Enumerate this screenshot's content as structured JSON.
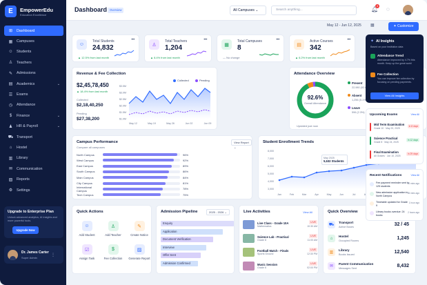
{
  "brand": {
    "name": "EmpowerEdu",
    "sub": "Education Excellence",
    "logo": "E"
  },
  "nav": [
    {
      "label": "Dashboard",
      "icon": "⊞",
      "chev": ""
    },
    {
      "label": "Campuses",
      "icon": "▦",
      "chev": ""
    },
    {
      "label": "Students",
      "icon": "☺",
      "chev": ""
    },
    {
      "label": "Teachers",
      "icon": "♙",
      "chev": ""
    },
    {
      "label": "Admissions",
      "icon": "✎",
      "chev": ""
    },
    {
      "label": "Academics",
      "icon": "▤",
      "chev": "⌄"
    },
    {
      "label": "Exams",
      "icon": "☰",
      "chev": ""
    },
    {
      "label": "Attendance",
      "icon": "◷",
      "chev": ""
    },
    {
      "label": "Finance",
      "icon": "$",
      "chev": "⌄"
    },
    {
      "label": "HR & Payroll",
      "icon": "♟",
      "chev": "⌄"
    },
    {
      "label": "Transport",
      "icon": "⛟",
      "chev": ""
    },
    {
      "label": "Hostel",
      "icon": "⌂",
      "chev": ""
    },
    {
      "label": "Library",
      "icon": "▥",
      "chev": ""
    },
    {
      "label": "Communication",
      "icon": "✉",
      "chev": ""
    },
    {
      "label": "Reports",
      "icon": "▨",
      "chev": ""
    },
    {
      "label": "Settings",
      "icon": "⚙",
      "chev": ""
    }
  ],
  "upgrade": {
    "title": "Upgrade to Enterprise Plan",
    "text": "Unlock advanced analytics, AI insights and more powerful tools.",
    "button": "Upgrade Now"
  },
  "user": {
    "name": "Dr. James Carter",
    "role": "Super Admin"
  },
  "top": {
    "title": "Dashboard",
    "badge": "Overview",
    "campus": "All Campuses ⌄",
    "search": "Search anything...",
    "notif_count": "3",
    "date": "May 12 - Jun 12, 2025",
    "customize": "✦ Customize"
  },
  "stats": [
    {
      "label": "Total Students",
      "value": "24,832",
      "change": "▲ 12.5% from last month",
      "icon": "☺",
      "bg": "#e6edff",
      "fg": "#2f6bff",
      "spark": "#2f6bff"
    },
    {
      "label": "Total Teachers",
      "value": "1,204",
      "change": "▲ 8.4% from last month",
      "icon": "♙",
      "bg": "#f0e6ff",
      "fg": "#8a4dff",
      "spark": "#8a4dff"
    },
    {
      "label": "Total Campuses",
      "value": "8",
      "change": "— No change",
      "icon": "▦",
      "bg": "#e2f6ec",
      "fg": "#1aa35a",
      "spark": "#1aa35a"
    },
    {
      "label": "Active Courses",
      "value": "342",
      "change": "▲ 6.2% from last month",
      "icon": "▤",
      "bg": "#fff1e0",
      "fg": "#f08a1a",
      "spark": "#f08a1a"
    }
  ],
  "revenue": {
    "title": "Revenue & Fee Collection",
    "total": "$2,45,78,450",
    "change": "▲ 18.4% from last month",
    "collected_label": "Collected",
    "collected": "$2,18,40,250",
    "pending_label": "Pending",
    "pending": "$27,38,200",
    "legend_collected": "Collected",
    "legend_pending": "Pending",
    "ticks_y": [
      "$3.5M",
      "$3.0M",
      "$2.5M",
      "$2.0M",
      "$1.5M",
      "$1.0M"
    ],
    "ticks_x": [
      "May 12",
      "May 19",
      "May 26",
      "Jun 02",
      "Jun 09"
    ]
  },
  "attendance": {
    "title": "Attendance Overview",
    "pct": "92.6%",
    "label": "Overall Attendance",
    "updated": "Updated just now",
    "items": [
      {
        "name": "Present",
        "val": "22,980 (92.6%)",
        "color": "#1aa35a"
      },
      {
        "name": "Absent",
        "val": "1,256 (5.1%)",
        "color": "#f08a1a"
      },
      {
        "name": "Leave",
        "val": "596 (2.3%)",
        "color": "#8a4dff"
      }
    ]
  },
  "campus": {
    "title": "Campus Performance",
    "sub": "Compare all campuses",
    "btn": "View Report ⌄",
    "rows": [
      {
        "name": "North Campus",
        "pct": "96%"
      },
      {
        "name": "West Campus",
        "pct": "92%"
      },
      {
        "name": "East Campus",
        "pct": "89%"
      },
      {
        "name": "South Campus",
        "pct": "86%"
      },
      {
        "name": "Main Campus",
        "pct": "84%"
      },
      {
        "name": "City Campus",
        "pct": "81%"
      },
      {
        "name": "International Campus",
        "pct": "78%"
      },
      {
        "name": "Tech Campus",
        "pct": "75%"
      }
    ]
  },
  "enroll": {
    "title": "Student Enrollment Trends",
    "btn": "This Year ⌄",
    "tip_month": "May 2025",
    "tip_val": "5,632 Students",
    "ticks_x": [
      "Jan",
      "Feb",
      "Mar",
      "Apr",
      "May",
      "Jun",
      "Jul",
      "Aug",
      "Sep",
      "Oct",
      "Nov",
      "Dec"
    ],
    "ticks_y": [
      "8,000",
      "7,000",
      "6,000",
      "5,000",
      "4,000",
      "3,000"
    ]
  },
  "quick": {
    "title": "Quick Actions",
    "items": [
      {
        "label": "Add Student",
        "icon": "☺",
        "bg": "#e6edff",
        "fg": "#2f6bff"
      },
      {
        "label": "Add Teacher",
        "icon": "♙",
        "bg": "#e2f6ec",
        "fg": "#1aa35a"
      },
      {
        "label": "Create Notice",
        "icon": "✎",
        "bg": "#fff1e0",
        "fg": "#f08a1a"
      },
      {
        "label": "Assign Task",
        "icon": "☑",
        "bg": "#f0e6ff",
        "fg": "#8a4dff"
      },
      {
        "label": "Fee Collection",
        "icon": "$",
        "bg": "#e2f6ec",
        "fg": "#1aa35a"
      },
      {
        "label": "Generate Report",
        "icon": "▨",
        "bg": "#e6edff",
        "fg": "#2f6bff"
      }
    ]
  },
  "pipeline": {
    "title": "Admission Pipeline",
    "btn": "2025 - 2026 ⌄",
    "rows": [
      {
        "name": "Enquiry",
        "val": "1,245",
        "color": "#dcdcfb"
      },
      {
        "name": "Application",
        "val": "845",
        "color": "#cfe0fb"
      },
      {
        "name": "Document Verification",
        "val": "512",
        "color": "#d8d1fa"
      },
      {
        "name": "Interview",
        "val": "376",
        "color": "#cfe0fb"
      },
      {
        "name": "Offer Sent",
        "val": "289",
        "color": "#d8d1fa"
      },
      {
        "name": "Admission Confirmed",
        "val": "256",
        "color": "#cfe0fb"
      }
    ]
  },
  "live": {
    "title": "Live Activities",
    "view": "View All",
    "rows": [
      {
        "t": "Live Class - Grade 10A",
        "s": "Mathematics",
        "time": "10:30 AM"
      },
      {
        "t": "Science Lab - Practical",
        "s": "Grade 8",
        "time": "11:00 AM"
      },
      {
        "t": "Football Match - Finals",
        "s": "Sports Ground",
        "time": "12:30 PM"
      },
      {
        "t": "Music Session",
        "s": "Grade 6",
        "time": "02:00 PM"
      }
    ],
    "badge": "LIVE"
  },
  "overview": {
    "title": "Quick Overview",
    "rows": [
      {
        "t": "Transport",
        "s": "Active Buses",
        "v": "32 / 45",
        "icon": "⛟",
        "bg": "#e6edff",
        "fg": "#2f6bff"
      },
      {
        "t": "Hostel",
        "s": "Occupied Rooms",
        "v": "1,245",
        "icon": "⌂",
        "bg": "#e2f6ec",
        "fg": "#1aa35a"
      },
      {
        "t": "Library",
        "s": "Books Issued",
        "v": "12,540",
        "icon": "▥",
        "bg": "#fff1e0",
        "fg": "#f08a1a"
      },
      {
        "t": "Parent Communication",
        "s": "Messages Sent",
        "v": "8,432",
        "icon": "✉",
        "bg": "#f0e6ff",
        "fg": "#8a4dff"
      }
    ]
  },
  "ai": {
    "title": "AI Insights",
    "sub": "Based on your institution data",
    "items": [
      {
        "t": "Attendance Trend",
        "d": "Attendance improved by 4.7% this month. Keep up the great work!",
        "color": "#1aa35a"
      },
      {
        "t": "Fee Collection",
        "d": "You can improve fee collection by focusing on pending payments.",
        "color": "#f08a1a"
      }
    ],
    "btn": "View All Insights"
  },
  "exams": {
    "title": "Upcoming Exams",
    "view": "View All",
    "rows": [
      {
        "t": "Mid Term Examination",
        "s": "Grade 10 · May 20, 2025",
        "b": "In 8 days",
        "color": "#ef3b3b",
        "bbg": "#ffe5e5"
      },
      {
        "t": "Science Practical",
        "s": "Grade 8 · May 24, 2025",
        "b": "In 12 days",
        "color": "#1aa35a",
        "bbg": "#e2f6ec"
      },
      {
        "t": "Final Examination",
        "s": "All Grades · Jun 10, 2025",
        "b": "In 29 days",
        "color": "#ef3b3b",
        "bbg": "#ffe5e5"
      }
    ]
  },
  "notifs": {
    "title": "Recent Notifications",
    "view": "View All",
    "rows": [
      {
        "t": "Fee payment reminder sent to 125 students",
        "time": "10 mins ago",
        "color": "#e6edff"
      },
      {
        "t": "New admission application in North Campus",
        "time": "35 mins ago",
        "color": "#e2f6ec"
      },
      {
        "t": "Timetable updated for Grade 9",
        "time": "1 hour ago",
        "color": "#fff1e0"
      },
      {
        "t": "Library books overdue: 24 books",
        "time": "2 hours ago",
        "color": "#f0e6ff"
      }
    ]
  }
}
